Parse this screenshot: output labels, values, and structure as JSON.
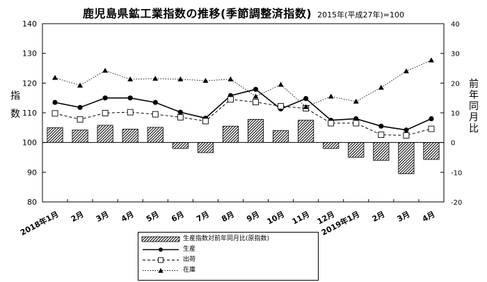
{
  "title": "鹿児島県鉱工業指数の推移(季節調整済指数)",
  "subtitle": "2015年(平成27年)=100",
  "left_axis_label": "指数",
  "right_axis_label": "前年同月比",
  "legend": {
    "bar": "生産指数対前年同月比(原指数)",
    "production": "生産",
    "shipments": "出荷",
    "inventory": "在庫"
  },
  "colors": {
    "line": "#000000",
    "bar_fill": "#ffffff",
    "bar_hatch": "#000000"
  },
  "chart_data": {
    "type": "line",
    "categories": [
      "2018年1月",
      "2月",
      "3月",
      "4月",
      "5月",
      "6月",
      "7月",
      "8月",
      "9月",
      "10月",
      "11月",
      "12月",
      "2019年1月",
      "2月",
      "3月",
      "4月"
    ],
    "y_left": {
      "range": [
        80,
        140
      ],
      "ticks": [
        80,
        90,
        100,
        110,
        120,
        130,
        140
      ]
    },
    "y_right": {
      "range": [
        -20,
        40
      ],
      "ticks": [
        -20,
        -10,
        0,
        10,
        20,
        30,
        40
      ]
    },
    "grid": false,
    "legend_position": "bottom",
    "series": [
      {
        "name": "生産指数対前年同月比(原指数)",
        "type": "bar",
        "axis": "right",
        "values": [
          5.0,
          4.2,
          5.8,
          4.5,
          5.1,
          -2.0,
          -3.4,
          5.5,
          7.8,
          4.0,
          7.5,
          -2.0,
          -5.0,
          -6.0,
          -10.5,
          -5.7
        ]
      },
      {
        "name": "生産",
        "type": "line",
        "axis": "left",
        "marker": "filled-circle",
        "line_style": "solid",
        "values": [
          113.5,
          111.8,
          115.0,
          115.0,
          113.5,
          110.2,
          108.2,
          115.8,
          117.9,
          111.3,
          114.8,
          107.5,
          108.0,
          105.5,
          104.2,
          108.0
        ]
      },
      {
        "name": "出荷",
        "type": "line",
        "axis": "left",
        "marker": "open-square",
        "line_style": "dashed",
        "values": [
          109.8,
          107.8,
          109.9,
          110.2,
          109.5,
          108.5,
          107.2,
          114.5,
          113.6,
          112.2,
          111.5,
          106.5,
          106.5,
          102.6,
          102.4,
          104.6
        ]
      },
      {
        "name": "在庫",
        "type": "line",
        "axis": "left",
        "marker": "filled-triangle",
        "line_style": "dotted",
        "values": [
          121.8,
          119.2,
          124.2,
          121.3,
          121.5,
          121.3,
          120.8,
          121.3,
          115.5,
          119.5,
          112.0,
          115.5,
          113.8,
          118.5,
          124.0,
          127.7
        ]
      }
    ]
  }
}
